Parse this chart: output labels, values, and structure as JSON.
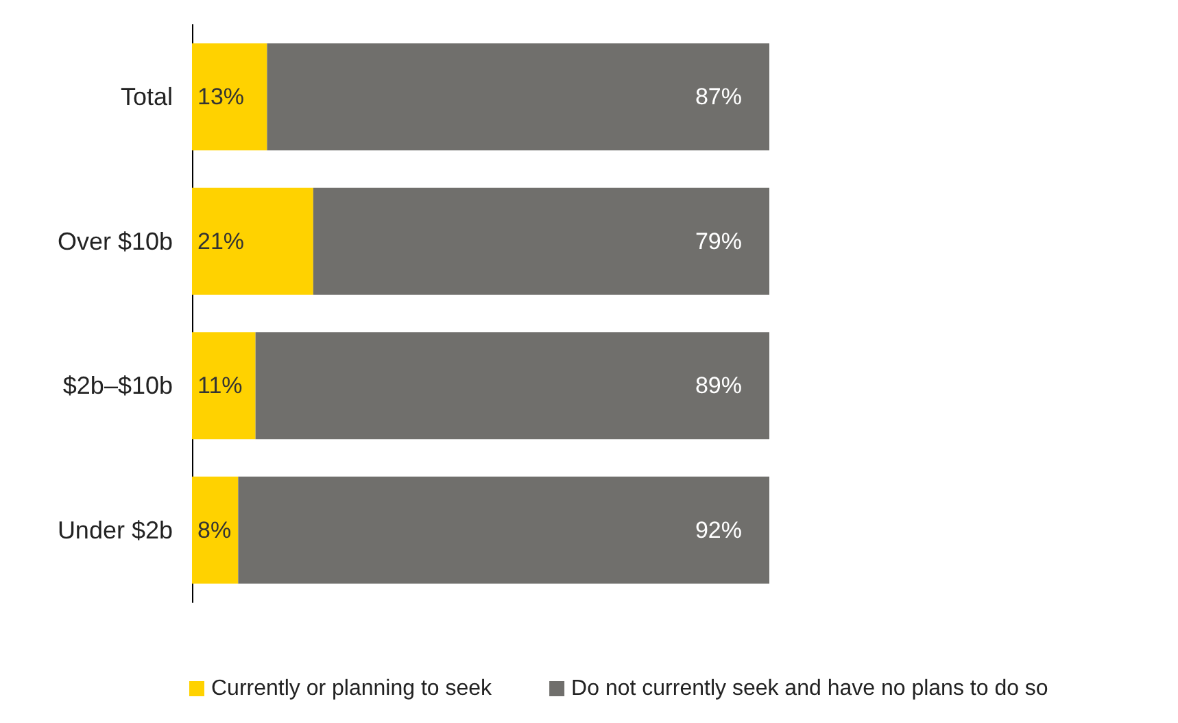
{
  "chart_data": {
    "type": "bar",
    "orientation": "horizontal",
    "stacked": true,
    "categories": [
      "Total",
      "Over $10b",
      "$2b–$10b",
      "Under $2b"
    ],
    "series": [
      {
        "name": "Currently or planning to seek",
        "color": "#ffd200",
        "values": [
          13,
          21,
          11,
          8
        ],
        "value_labels": [
          "13%",
          "21%",
          "11%",
          "8%"
        ]
      },
      {
        "name": "Do not currently seek and have no plans to do so",
        "color": "#706f6c",
        "values": [
          87,
          79,
          89,
          92
        ],
        "value_labels": [
          "87%",
          "79%",
          "89%",
          "92%"
        ]
      }
    ],
    "legend": "bottom"
  }
}
